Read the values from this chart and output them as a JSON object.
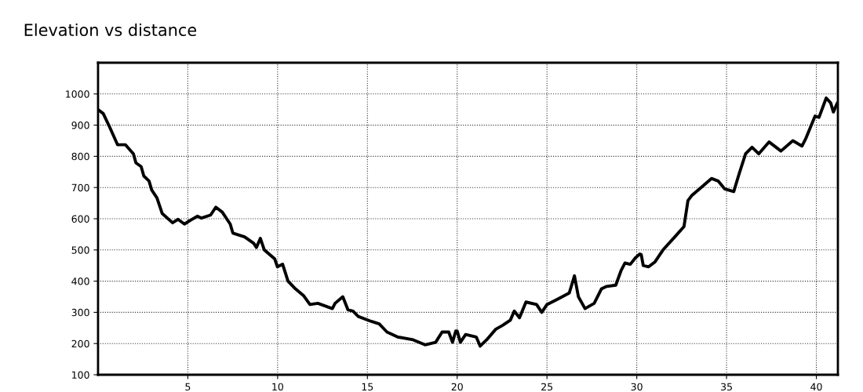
{
  "chart_data": {
    "type": "line",
    "title": "Elevation vs distance",
    "x": [
      0,
      0.29,
      0.66,
      1.09,
      1.53,
      1.97,
      2.11,
      2.4,
      2.55,
      2.84,
      2.99,
      3.28,
      3.57,
      4.15,
      4.45,
      4.81,
      5.17,
      5.54,
      5.76,
      6.27,
      6.56,
      6.92,
      7.36,
      7.51,
      8.16,
      8.67,
      8.82,
      9.04,
      9.26,
      9.84,
      9.99,
      10.28,
      10.58,
      11.0,
      11.44,
      11.8,
      12.24,
      13.05,
      13.2,
      13.63,
      13.92,
      14.2,
      14.49,
      15.22,
      15.66,
      16.09,
      16.68,
      17.55,
      18.21,
      18.8,
      19.16,
      19.53,
      19.74,
      19.92,
      20.0,
      20.18,
      20.47,
      21.06,
      21.28,
      21.64,
      22.15,
      22.52,
      22.96,
      23.18,
      23.47,
      23.83,
      24.42,
      24.71,
      25.0,
      25.58,
      26.24,
      26.53,
      26.75,
      27.12,
      27.63,
      28.03,
      28.32,
      28.83,
      29.12,
      29.34,
      29.64,
      29.93,
      30.17,
      30.25,
      30.36,
      30.66,
      31.02,
      31.46,
      32.12,
      32.63,
      32.85,
      33.07,
      33.58,
      34.16,
      34.53,
      34.89,
      35.4,
      35.69,
      36.06,
      36.42,
      36.79,
      37.37,
      38.03,
      38.69,
      39.2,
      39.42,
      39.93,
      40.15,
      40.55,
      40.8,
      40.95,
      41.17
    ],
    "series": [
      {
        "color": "#000000",
        "values": [
          950,
          937,
          892,
          837,
          837,
          808,
          779,
          767,
          737,
          721,
          692,
          667,
          617,
          587,
          598,
          583,
          596,
          608,
          602,
          612,
          637,
          621,
          583,
          554,
          542,
          521,
          508,
          537,
          500,
          471,
          446,
          454,
          400,
          375,
          354,
          325,
          329,
          312,
          329,
          350,
          308,
          304,
          287,
          271,
          263,
          237,
          221,
          212,
          196,
          204,
          237,
          237,
          204,
          240,
          240,
          204,
          229,
          221,
          192,
          212,
          246,
          258,
          275,
          304,
          283,
          333,
          325,
          300,
          325,
          342,
          362,
          417,
          350,
          312,
          329,
          375,
          383,
          387,
          433,
          458,
          454,
          475,
          487,
          485,
          450,
          446,
          462,
          500,
          542,
          575,
          658,
          675,
          700,
          729,
          721,
          696,
          687,
          742,
          808,
          829,
          808,
          846,
          817,
          850,
          833,
          858,
          929,
          925,
          987,
          971,
          942,
          971
        ]
      }
    ],
    "xlim": [
      0,
      41.2
    ],
    "xticks": [
      5,
      10,
      15,
      20,
      25,
      30,
      35,
      40
    ],
    "ylim": [
      100,
      1100
    ],
    "yticks": [
      100,
      200,
      300,
      400,
      500,
      600,
      700,
      800,
      900,
      1000
    ],
    "grid": true,
    "line_style": "solid",
    "marker": "none"
  }
}
